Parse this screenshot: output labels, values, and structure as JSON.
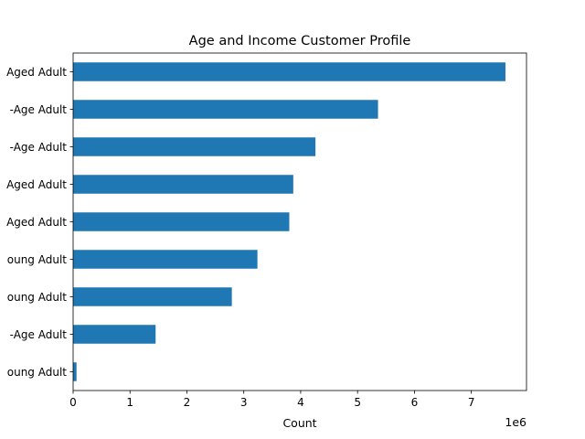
{
  "chart_data": {
    "type": "bar",
    "orientation": "horizontal",
    "title": "Age and Income Customer Profile",
    "xlabel": "Count",
    "ylabel": "",
    "x_scale_label": "1e6",
    "xlim": [
      0,
      7.97
    ],
    "xticks": [
      0,
      1,
      2,
      3,
      4,
      5,
      6,
      7
    ],
    "grid": false,
    "legend": false,
    "bar_color": "#1f77b4",
    "categories": [
      "oung Adult",
      "-Age Adult",
      "oung Adult",
      "oung Adult",
      "Aged Adult",
      "Aged Adult",
      "-Age Adult",
      "-Age Adult",
      "Aged Adult"
    ],
    "values": [
      0.06,
      1.45,
      2.79,
      3.24,
      3.8,
      3.87,
      4.26,
      5.36,
      7.6
    ]
  }
}
